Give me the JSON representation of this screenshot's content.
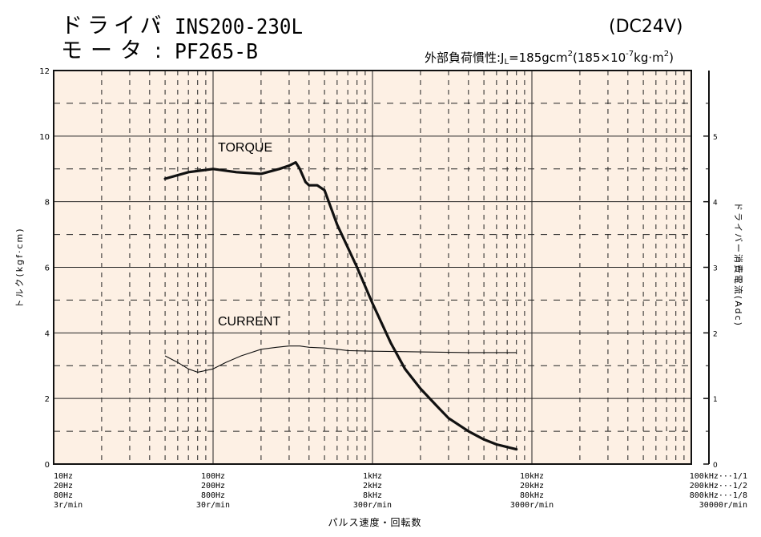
{
  "header": {
    "driver_label": "ドライバ",
    "driver_value": "INS200-230L",
    "motor_label": "モータ",
    "motor_value": "PF265-B",
    "colon": ":",
    "voltage": "(DC24V)",
    "inertia_prefix": "外部負荷慣性:J",
    "inertia_sub": "L",
    "inertia_mid": "=185gcm",
    "inertia_sup1": "2",
    "inertia_paren": "(185×10",
    "inertia_sup2": "-7",
    "inertia_kg": "kg·m",
    "inertia_sup3": "2",
    "inertia_close": ")"
  },
  "colors": {
    "plot_bg": "#fdf0e4",
    "grid": "#222222",
    "line": "#111111"
  },
  "chart_data": {
    "type": "line",
    "x_scale": "log",
    "xlim": [
      10,
      100000
    ],
    "ylim": [
      0,
      12
    ],
    "y2lim": [
      0,
      6
    ],
    "ylabel": "トルク(kgf·cm)",
    "y2label": "ドライバー消費電流(Adc)",
    "xlabel": "パルス速度・回転数",
    "y_ticks": [
      "0",
      "2",
      "4",
      "6",
      "8",
      "10",
      "12"
    ],
    "y2_ticks": [
      "0",
      "1",
      "2",
      "3",
      "4",
      "5"
    ],
    "x_tick_labels": [
      {
        "x": 10,
        "lines": [
          "10Hz",
          "20Hz",
          "80Hz",
          "3r/min"
        ]
      },
      {
        "x": 100,
        "lines": [
          "100Hz",
          "200Hz",
          "800Hz",
          "30r/min"
        ]
      },
      {
        "x": 1000,
        "lines": [
          "1kHz",
          "2kHz",
          "8kHz",
          "300r/min"
        ]
      },
      {
        "x": 10000,
        "lines": [
          "10kHz",
          "20kHz",
          "80kHz",
          "3000r/min"
        ]
      },
      {
        "x": 100000,
        "lines": [
          "100kHz···1/1",
          "200kHz···1/2",
          "800kHz···1/8",
          "30000r/min"
        ]
      }
    ],
    "series": [
      {
        "name": "TORQUE",
        "axis": "left",
        "x": [
          50,
          70,
          100,
          140,
          200,
          260,
          300,
          330,
          350,
          380,
          400,
          450,
          500,
          600,
          800,
          1000,
          1300,
          1600,
          2000,
          2500,
          3000,
          4000,
          5000,
          6000,
          8000
        ],
        "y": [
          8.7,
          8.9,
          9.0,
          8.9,
          8.85,
          9.0,
          9.1,
          9.2,
          9.0,
          8.6,
          8.5,
          8.5,
          8.35,
          7.3,
          6.0,
          4.9,
          3.7,
          2.9,
          2.3,
          1.8,
          1.4,
          1.0,
          0.75,
          0.6,
          0.45
        ]
      },
      {
        "name": "CURRENT",
        "axis": "right",
        "x": [
          50,
          60,
          70,
          80,
          100,
          120,
          150,
          200,
          250,
          300,
          350,
          400,
          500,
          600,
          700,
          1000,
          2000,
          4000,
          8000
        ],
        "y": [
          1.65,
          1.55,
          1.45,
          1.4,
          1.45,
          1.55,
          1.65,
          1.75,
          1.78,
          1.8,
          1.8,
          1.78,
          1.77,
          1.75,
          1.73,
          1.72,
          1.71,
          1.7,
          1.7
        ]
      }
    ]
  }
}
